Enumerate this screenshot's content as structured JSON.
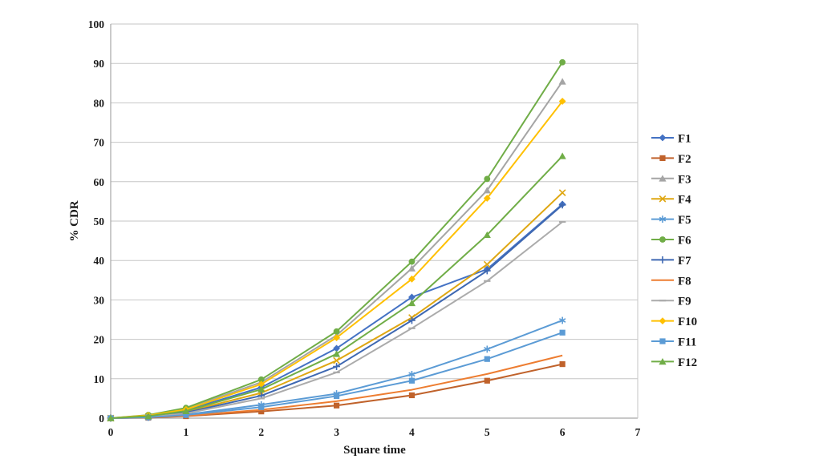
{
  "chart_data": {
    "type": "line",
    "title": "",
    "xlabel": "Square time",
    "ylabel": "% CDR",
    "xlim": [
      0,
      7
    ],
    "ylim": [
      0,
      100
    ],
    "x_ticks": [
      0,
      1,
      2,
      3,
      4,
      5,
      6,
      7
    ],
    "y_ticks": [
      0,
      10,
      20,
      30,
      40,
      50,
      60,
      70,
      80,
      90,
      100
    ],
    "grid": "horizontal",
    "legend_position": "right",
    "x": [
      0,
      0.5,
      1,
      2,
      3,
      4,
      5,
      6
    ],
    "series": [
      {
        "name": "F1",
        "color": "#4472C4",
        "marker": "diamond",
        "values": [
          0,
          0.4,
          2.0,
          7.8,
          17.7,
          30.7,
          37.8,
          54.3
        ]
      },
      {
        "name": "F2",
        "color": "#C0622B",
        "marker": "square",
        "values": [
          0,
          0.1,
          0.5,
          1.7,
          3.2,
          5.8,
          9.5,
          13.7
        ]
      },
      {
        "name": "F3",
        "color": "#A5A5A5",
        "marker": "triangle",
        "values": [
          0,
          0.6,
          2.4,
          9.1,
          21.0,
          38.0,
          57.8,
          85.4
        ]
      },
      {
        "name": "F4",
        "color": "#DFA712",
        "marker": "x",
        "values": [
          0,
          0.4,
          1.6,
          6.4,
          14.6,
          25.5,
          39.0,
          57.2
        ]
      },
      {
        "name": "F5",
        "color": "#5B9BD5",
        "marker": "asterisk",
        "values": [
          0,
          0.2,
          0.9,
          3.4,
          6.2,
          11.1,
          17.5,
          24.8
        ]
      },
      {
        "name": "F6",
        "color": "#70AD47",
        "marker": "circle",
        "values": [
          0,
          0.8,
          2.6,
          9.8,
          22.0,
          39.7,
          60.7,
          90.3
        ]
      },
      {
        "name": "F7",
        "color": "#3E68B2",
        "marker": "plus",
        "values": [
          0,
          0.3,
          1.4,
          5.7,
          13.1,
          24.8,
          37.4,
          54.1
        ]
      },
      {
        "name": "F8",
        "color": "#ED7D31",
        "marker": "none",
        "values": [
          0,
          0.2,
          0.6,
          2.1,
          4.3,
          7.2,
          11.2,
          15.9
        ]
      },
      {
        "name": "F9",
        "color": "#ABABAB",
        "marker": "dash",
        "values": [
          0,
          0.3,
          1.2,
          5.0,
          11.6,
          22.8,
          34.8,
          49.8
        ]
      },
      {
        "name": "F10",
        "color": "#FFC000",
        "marker": "diamond",
        "values": [
          0,
          0.7,
          2.2,
          8.6,
          20.4,
          35.3,
          55.8,
          80.4
        ]
      },
      {
        "name": "F11",
        "color": "#5B9BD5",
        "marker": "square",
        "values": [
          0,
          0.2,
          0.8,
          2.8,
          5.6,
          9.5,
          15.0,
          21.7
        ]
      },
      {
        "name": "F12",
        "color": "#70AD47",
        "marker": "triangle",
        "values": [
          0,
          0.5,
          1.8,
          7.3,
          16.3,
          29.2,
          46.5,
          66.5
        ]
      }
    ],
    "colors": {
      "gridline": "#C6C6C6",
      "axis": "#A6A6A6",
      "text": "#1a1a1a",
      "background": "#ffffff"
    }
  }
}
